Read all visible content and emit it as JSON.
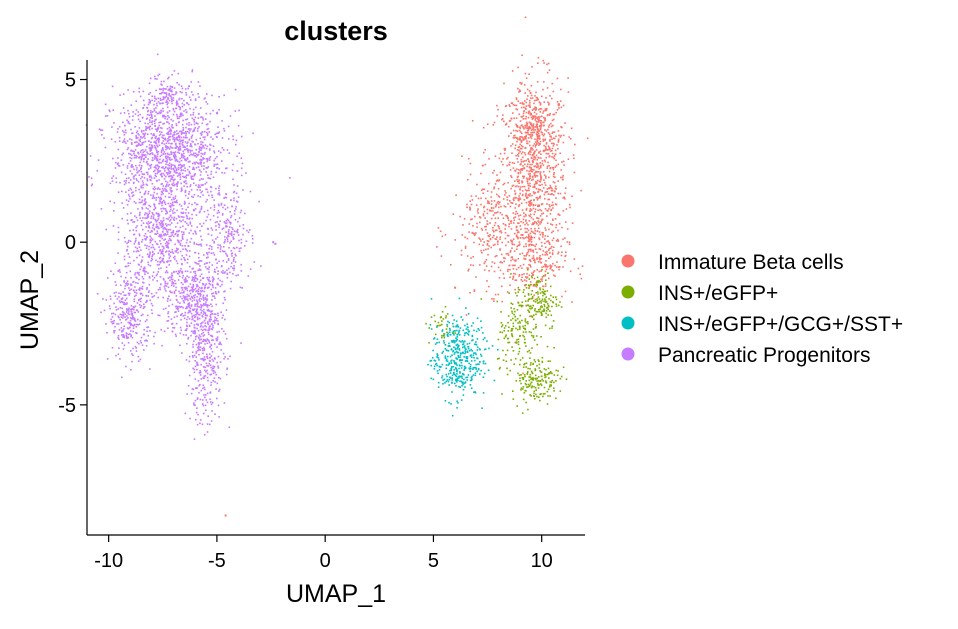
{
  "chart_data": {
    "type": "scatter",
    "title": "clusters",
    "xlabel": "UMAP_1",
    "ylabel": "UMAP_2",
    "xlim": [
      -11.0,
      12.0
    ],
    "ylim": [
      -9.0,
      5.6
    ],
    "x_ticks": [
      -10,
      -5,
      0,
      5,
      10
    ],
    "x_tick_labels": [
      "-10",
      "-5",
      "0",
      "5",
      "10"
    ],
    "y_ticks": [
      5,
      0,
      -5
    ],
    "y_tick_labels": [
      "5",
      "0",
      "-5"
    ],
    "grid": false,
    "legend_position": "right",
    "series": [
      {
        "name": "Immature Beta cells",
        "color": "#F8766D",
        "clusters": [
          {
            "center": [
              9.6,
              2.0
            ],
            "sd": [
              0.8,
              1.5
            ],
            "n": 900
          },
          {
            "center": [
              9.7,
              3.6
            ],
            "sd": [
              0.5,
              0.5
            ],
            "n": 200
          },
          {
            "center": [
              7.8,
              0.4
            ],
            "sd": [
              1.0,
              0.9
            ],
            "n": 300
          },
          {
            "center": [
              9.6,
              -0.6
            ],
            "sd": [
              0.8,
              0.5
            ],
            "n": 180
          }
        ],
        "outliers": [
          [
            -4.6,
            -8.4
          ],
          [
            8.6,
            3.8
          ],
          [
            6.0,
            -1.4
          ]
        ]
      },
      {
        "name": "INS+/eGFP+",
        "color": "#7CAE00",
        "clusters": [
          {
            "center": [
              9.8,
              -1.8
            ],
            "sd": [
              0.5,
              0.45
            ],
            "n": 170
          },
          {
            "center": [
              8.9,
              -2.8
            ],
            "sd": [
              0.5,
              0.5
            ],
            "n": 110
          },
          {
            "center": [
              9.7,
              -4.2
            ],
            "sd": [
              0.55,
              0.35
            ],
            "n": 180
          },
          {
            "center": [
              5.4,
              -2.6
            ],
            "sd": [
              0.3,
              0.3
            ],
            "n": 35
          }
        ],
        "outliers": []
      },
      {
        "name": "INS+/eGFP+/GCG+/SST+",
        "color": "#00BFC4",
        "clusters": [
          {
            "center": [
              6.0,
              -3.7
            ],
            "sd": [
              0.55,
              0.55
            ],
            "n": 330
          },
          {
            "center": [
              6.3,
              -2.7
            ],
            "sd": [
              0.3,
              0.3
            ],
            "n": 50
          },
          {
            "center": [
              7.2,
              -3.2
            ],
            "sd": [
              0.3,
              0.4
            ],
            "n": 40
          }
        ],
        "outliers": []
      },
      {
        "name": "Pancreatic Progenitors",
        "color": "#C77CFF",
        "clusters": [
          {
            "center": [
              -7.2,
              2.8
            ],
            "sd": [
              1.3,
              0.9
            ],
            "n": 1300
          },
          {
            "center": [
              -7.6,
              0.2
            ],
            "sd": [
              0.9,
              1.0
            ],
            "n": 650
          },
          {
            "center": [
              -9.0,
              -2.2
            ],
            "sd": [
              0.5,
              0.7
            ],
            "n": 320
          },
          {
            "center": [
              -5.5,
              -3.2
            ],
            "sd": [
              0.45,
              1.2
            ],
            "n": 420
          },
          {
            "center": [
              -4.6,
              0.2
            ],
            "sd": [
              0.6,
              0.8
            ],
            "n": 250
          },
          {
            "center": [
              -6.2,
              -1.7
            ],
            "sd": [
              0.6,
              0.7
            ],
            "n": 320
          },
          {
            "center": [
              -7.3,
              4.5
            ],
            "sd": [
              0.35,
              0.25
            ],
            "n": 90
          }
        ],
        "outliers": [
          [
            -2.3,
            -0.05
          ],
          [
            -2.4,
            0.0
          ]
        ]
      }
    ]
  }
}
